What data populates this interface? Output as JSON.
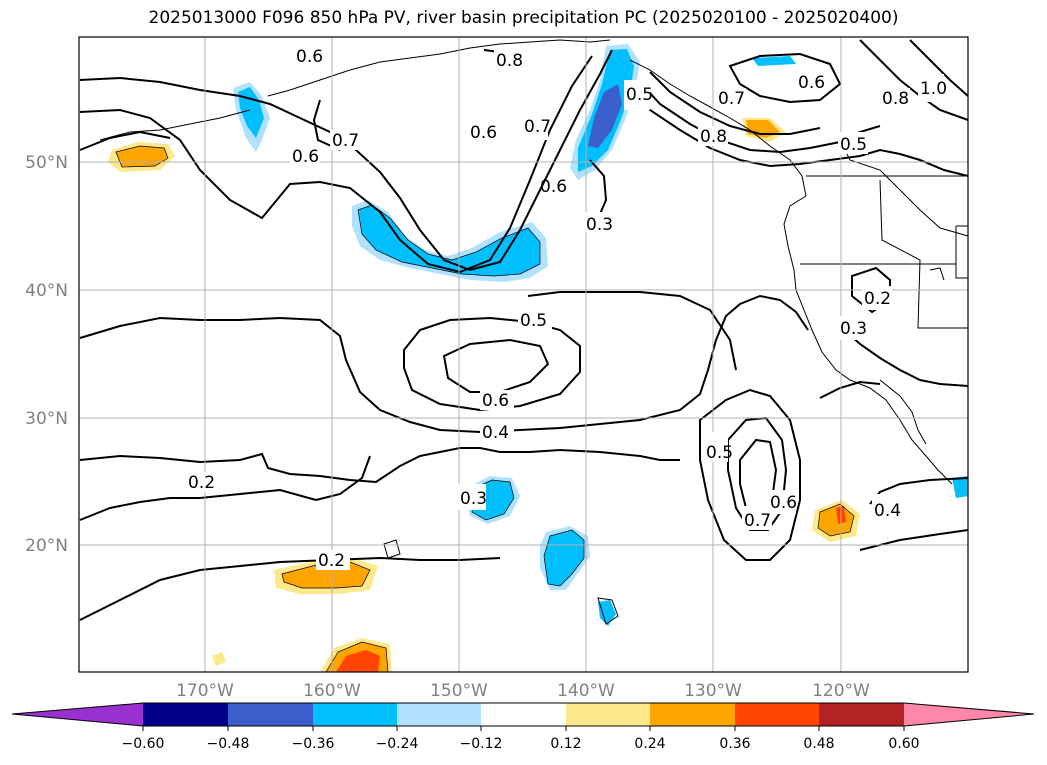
{
  "title": "2025013000 F096 850 hPa PV, river basin precipitation PC (2025020100 - 2025020400)",
  "latitude_labels": [
    "50°N",
    "40°N",
    "30°N",
    "20°N"
  ],
  "longitude_labels": [
    "170°W",
    "160°W",
    "150°W",
    "140°W",
    "130°W",
    "120°W"
  ],
  "contour_labels": [
    "0.6",
    "0.8",
    "0.6",
    "0.7",
    "0.6",
    "0.7",
    "0.5",
    "0.6",
    "0.3",
    "0.7",
    "0.8",
    "0.6",
    "0.8",
    "1.0",
    "0.5",
    "0.5",
    "0.6",
    "0.4",
    "0.2",
    "0.2",
    "0.3",
    "0.3",
    "0.2",
    "0.5",
    "0.6",
    "0.7",
    "0.4"
  ],
  "colorbar": {
    "ticks": [
      "−0.60",
      "−0.48",
      "−0.36",
      "−0.24",
      "−0.12",
      "0.12",
      "0.24",
      "0.36",
      "0.48",
      "0.60"
    ],
    "colors": [
      "#9b30d0",
      "#00008b",
      "#3a5fcd",
      "#00bfff",
      "#b0e2ff",
      "#ffffff",
      "#fde98b",
      "#ffa500",
      "#ff4500",
      "#b22222",
      "#ff88aa"
    ]
  },
  "colors": {
    "negative_mid": "#00bfff",
    "negative_light": "#b0e2ff",
    "negative_strong": "#3a5fcd",
    "positive_light": "#fde98b",
    "positive_mid": "#ffa500",
    "positive_strong": "#ff4500"
  }
}
